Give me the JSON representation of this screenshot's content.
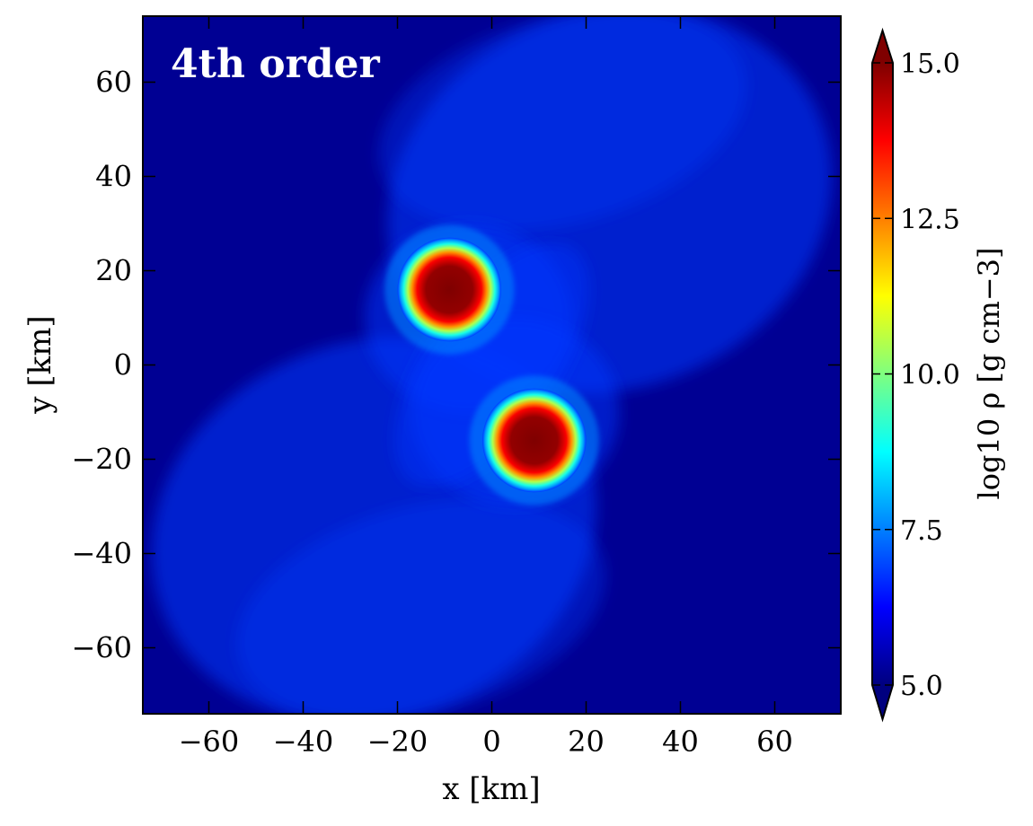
{
  "chart_data": {
    "type": "heatmap",
    "title": "",
    "panel_label": "4th order",
    "xlabel": "x [km]",
    "ylabel": "y [km]",
    "xlim": [
      -74,
      74
    ],
    "ylim": [
      -74,
      74
    ],
    "x_ticks": [
      -60,
      -40,
      -20,
      0,
      20,
      40,
      60
    ],
    "y_ticks": [
      -60,
      -40,
      -20,
      0,
      20,
      40,
      60
    ],
    "x_tick_labels": [
      "−60",
      "−40",
      "−20",
      "0",
      "20",
      "40",
      "60"
    ],
    "y_tick_labels": [
      "−60",
      "−40",
      "−20",
      "0",
      "20",
      "40",
      "60"
    ],
    "colorbar": {
      "label": "log10 ρ [g cm−3]",
      "range": [
        5.0,
        15.0
      ],
      "ticks": [
        5.0,
        7.5,
        10.0,
        12.5,
        15.0
      ],
      "tick_labels": [
        "5.0",
        "7.5",
        "10.0",
        "12.5",
        "15.0"
      ],
      "colormap": "jet",
      "extend": "both"
    },
    "stars": [
      {
        "x": -9,
        "y": 16,
        "radius_km": 11
      },
      {
        "x": 9,
        "y": -16,
        "radius_km": 11
      }
    ],
    "background_level": 5.2,
    "envelope_level": 6.8
  },
  "colors": {
    "jet": [
      "#00007f",
      "#0000ff",
      "#007fff",
      "#00ffff",
      "#7fff7f",
      "#ffff00",
      "#ff7f00",
      "#ff0000",
      "#7f0000"
    ]
  }
}
